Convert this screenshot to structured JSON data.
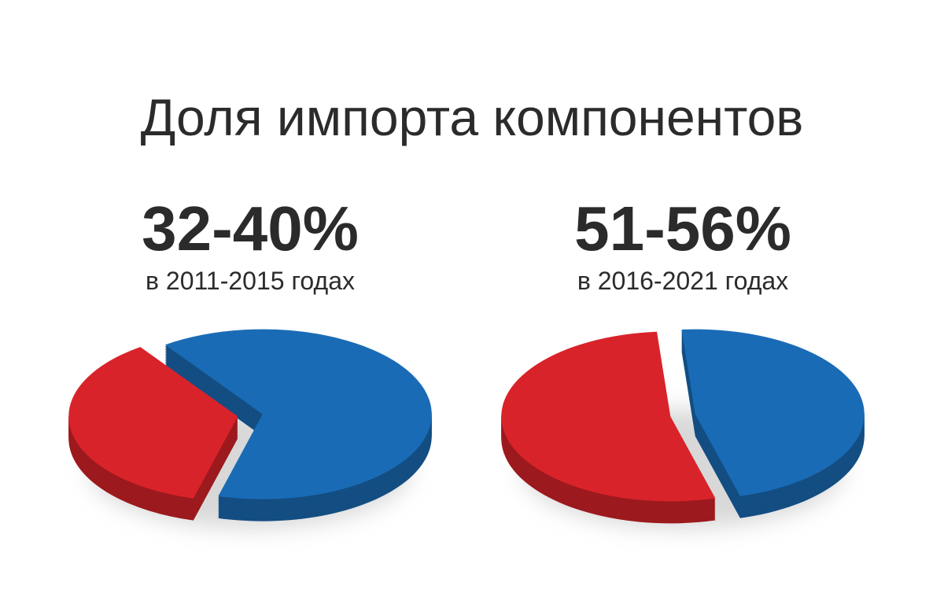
{
  "title": "Доля импорта компонентов",
  "chart_data": [
    {
      "type": "pie",
      "title": "32-40%",
      "subtitle": "в 2011-2015 годах",
      "values": [
        36,
        64
      ],
      "colors": [
        "#d9232a",
        "#1a6bb5"
      ]
    },
    {
      "type": "pie",
      "title": "51-56%",
      "subtitle": "в 2016-2021 годах",
      "values": [
        53,
        47
      ],
      "colors": [
        "#d9232a",
        "#1a6bb5"
      ]
    }
  ]
}
